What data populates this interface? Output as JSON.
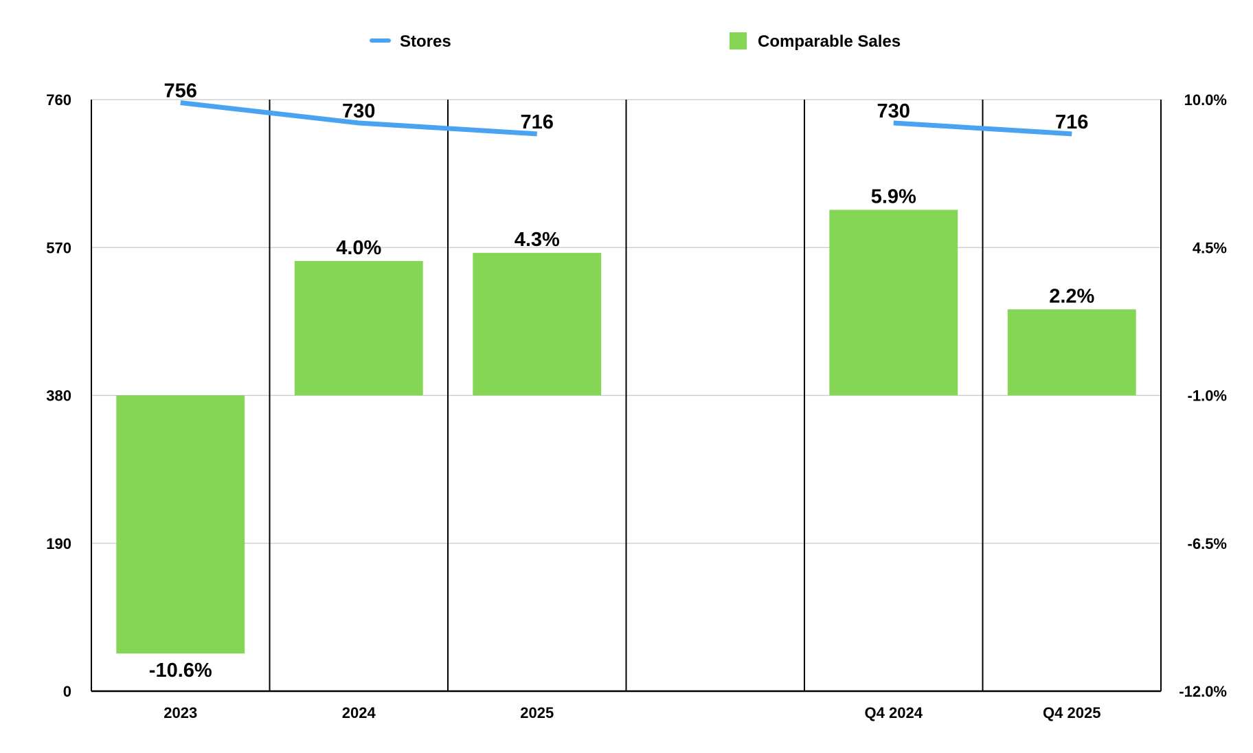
{
  "chart_data": {
    "type": "bar",
    "categories": [
      "2023",
      "2024",
      "2025",
      "",
      "Q4 2024",
      "Q4 2025"
    ],
    "series": [
      {
        "name": "Comparable Sales",
        "kind": "bar",
        "axis": "right",
        "color": "#84d654",
        "values": [
          -10.6,
          4.0,
          4.3,
          null,
          5.9,
          2.2
        ],
        "labels": [
          "-10.6%",
          "4.0%",
          "4.3%",
          "",
          "5.9%",
          "2.2%"
        ]
      },
      {
        "name": "Stores",
        "kind": "line",
        "axis": "left",
        "color": "#4aa3f0",
        "values": [
          756,
          730,
          716,
          null,
          730,
          716
        ],
        "labels": [
          "756",
          "730",
          "716",
          "",
          "730",
          "716"
        ]
      }
    ],
    "left_axis": {
      "ylim": [
        0,
        760
      ],
      "ticks": [
        0,
        190,
        380,
        570,
        760
      ],
      "tick_labels": [
        "0",
        "190",
        "380",
        "570",
        "760"
      ]
    },
    "right_axis": {
      "ylim": [
        -12.0,
        10.0
      ],
      "ticks": [
        -12.0,
        -6.5,
        -1.0,
        4.5,
        10.0
      ],
      "tick_labels": [
        "-12.0%",
        "-6.5%",
        "-1.0%",
        "4.5%",
        "10.0%"
      ]
    },
    "bar_baseline": -1.0,
    "grid": true,
    "legend_position": "top-center",
    "legend": [
      {
        "label": "Stores",
        "marker": "line",
        "color": "#4aa3f0"
      },
      {
        "label": "Comparable Sales",
        "marker": "square",
        "color": "#84d654"
      }
    ],
    "title": "",
    "xlabel": "",
    "ylabel": ""
  }
}
